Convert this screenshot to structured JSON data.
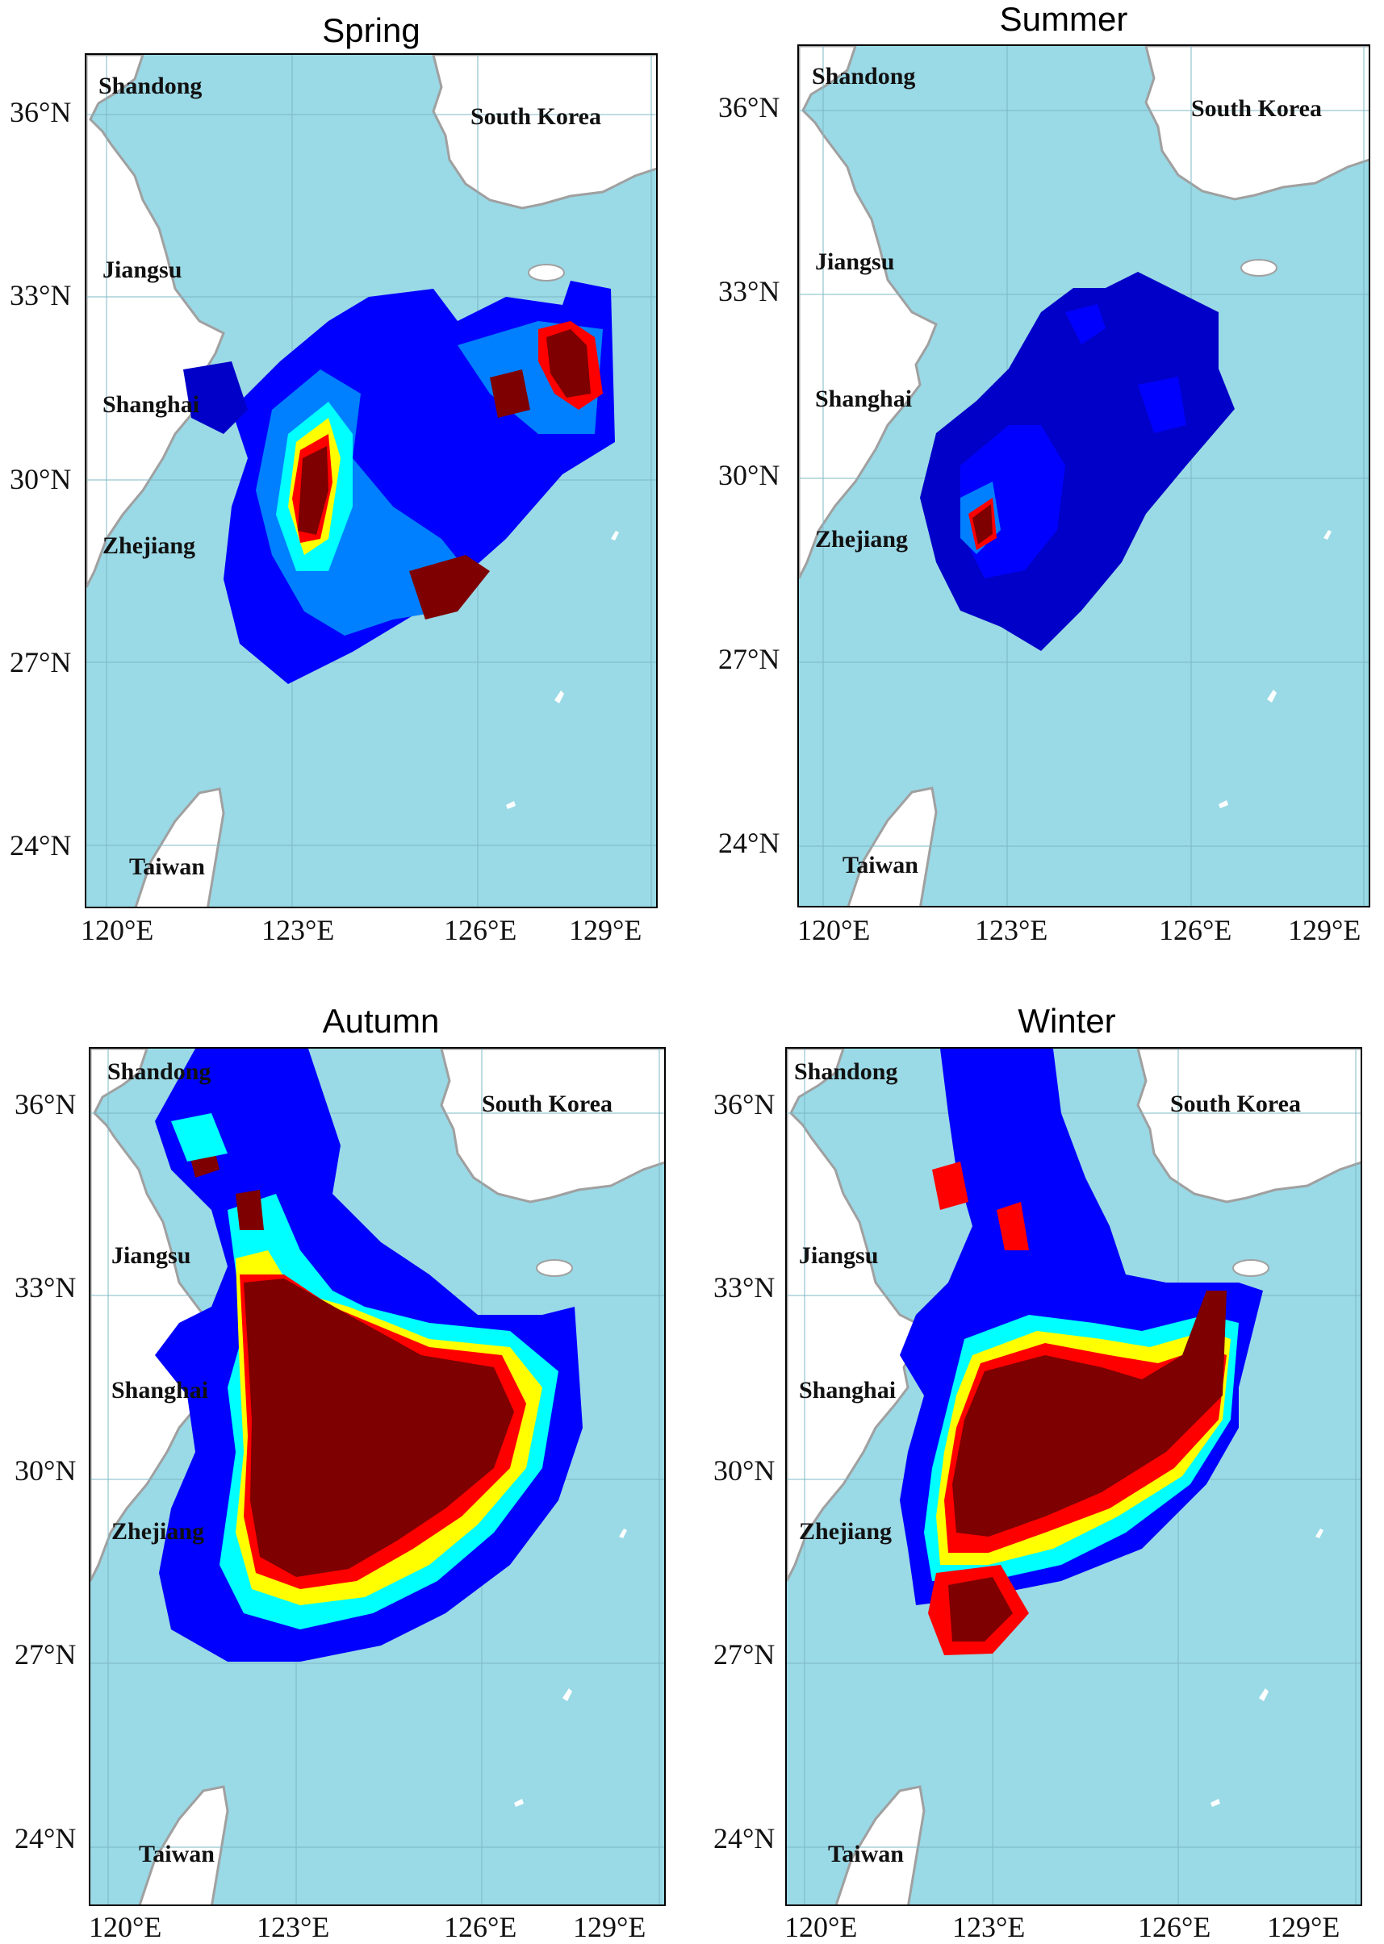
{
  "colors": {
    "sea": "#9ad9e6",
    "land": "#ffffff",
    "coast": "#a0a0a0",
    "grid": "#7cb8c6",
    "colormap": [
      "#00007f",
      "#0000ff",
      "#0080ff",
      "#00ffff",
      "#80ff80",
      "#ffff00",
      "#ff8000",
      "#ff0000",
      "#7f0000"
    ]
  },
  "axes": {
    "lat_ticks": [
      "36°N",
      "33°N",
      "30°N",
      "27°N",
      "24°N"
    ],
    "lon_ticks": [
      "120°E",
      "123°E",
      "126°E",
      "129°E"
    ]
  },
  "panels": [
    {
      "title": "Spring",
      "places": [
        "Shandong",
        "South Korea",
        "Jiangsu",
        "Shanghai",
        "Zhejiang",
        "Taiwan"
      ]
    },
    {
      "title": "Summer",
      "places": [
        "Shandong",
        "South Korea",
        "Jiangsu",
        "Shanghai",
        "Zhejiang",
        "Taiwan"
      ]
    },
    {
      "title": "Autumn",
      "places": [
        "Shandong",
        "South Korea",
        "Jiangsu",
        "Shanghai",
        "Zhejiang",
        "Taiwan"
      ]
    },
    {
      "title": "Winter",
      "places": [
        "Shandong",
        "South Korea",
        "Jiangsu",
        "Shanghai",
        "Zhejiang",
        "Taiwan"
      ]
    }
  ]
}
